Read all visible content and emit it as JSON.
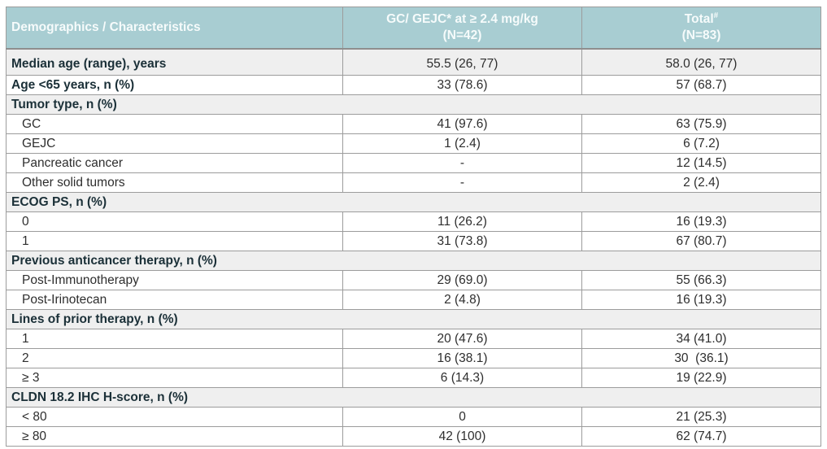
{
  "colors": {
    "header_bg": "#a8cdd2",
    "header_text": "#f6fbfb",
    "section_bg": "#efefef",
    "border": "#9c9c9c",
    "label_text": "#1b3038",
    "value_text": "#2e2e2e"
  },
  "chart_data": {
    "type": "table",
    "columns": [
      {
        "label": "Demographics / Characteristics"
      },
      {
        "line1": "GC/ GEJC* at ≥ 2.4 mg/kg",
        "line2": "(N=42)"
      },
      {
        "line1": "Total",
        "sup": "#",
        "line2": "(N=83)"
      }
    ],
    "rows": [
      {
        "type": "data",
        "bg": "gray",
        "label": "Median age (range), years",
        "v1": "55.5 (26, 77)",
        "v2": "58.0 (26, 77)"
      },
      {
        "type": "data",
        "bg": "white",
        "label": "Age <65 years, n (%)",
        "v1": "33 (78.6)",
        "v2": "57 (68.7)"
      },
      {
        "type": "section",
        "label": "Tumor type, n (%)"
      },
      {
        "type": "sub",
        "label": "GC",
        "v1": "41 (97.6)",
        "v2": "63 (75.9)"
      },
      {
        "type": "sub",
        "label": "GEJC",
        "v1": "1 (2.4)",
        "v2": "6 (7.2)"
      },
      {
        "type": "sub",
        "label": "Pancreatic cancer",
        "v1": "-",
        "v2": "12 (14.5)"
      },
      {
        "type": "sub",
        "label": "Other solid tumors",
        "v1": "-",
        "v2": "2 (2.4)"
      },
      {
        "type": "section",
        "label": "ECOG PS, n (%)"
      },
      {
        "type": "sub",
        "label": "0",
        "v1": "11 (26.2)",
        "v2": "16 (19.3)"
      },
      {
        "type": "sub",
        "label": "1",
        "v1": "31 (73.8)",
        "v2": "67 (80.7)"
      },
      {
        "type": "section",
        "label": "Previous anticancer therapy, n (%)"
      },
      {
        "type": "sub",
        "label": "Post-Immunotherapy",
        "v1": "29 (69.0)",
        "v2": "55 (66.3)"
      },
      {
        "type": "sub",
        "label": "Post-Irinotecan",
        "v1": "2 (4.8)",
        "v2": "16 (19.3)"
      },
      {
        "type": "section",
        "label": "Lines of prior therapy, n (%)"
      },
      {
        "type": "sub",
        "label": "1",
        "v1": "20 (47.6)",
        "v2": "34 (41.0)"
      },
      {
        "type": "sub",
        "label": "2",
        "v1": "16 (38.1)",
        "v2": "30  (36.1)"
      },
      {
        "type": "sub",
        "label": "≥ 3",
        "v1": "6 (14.3)",
        "v2": "19 (22.9)"
      },
      {
        "type": "section",
        "label": "CLDN 18.2 IHC H-score, n (%)"
      },
      {
        "type": "sub",
        "label": "< 80",
        "v1": "0",
        "v2": "21 (25.3)"
      },
      {
        "type": "sub",
        "label": "≥ 80",
        "v1": "42 (100)",
        "v2": "62 (74.7)"
      }
    ]
  }
}
